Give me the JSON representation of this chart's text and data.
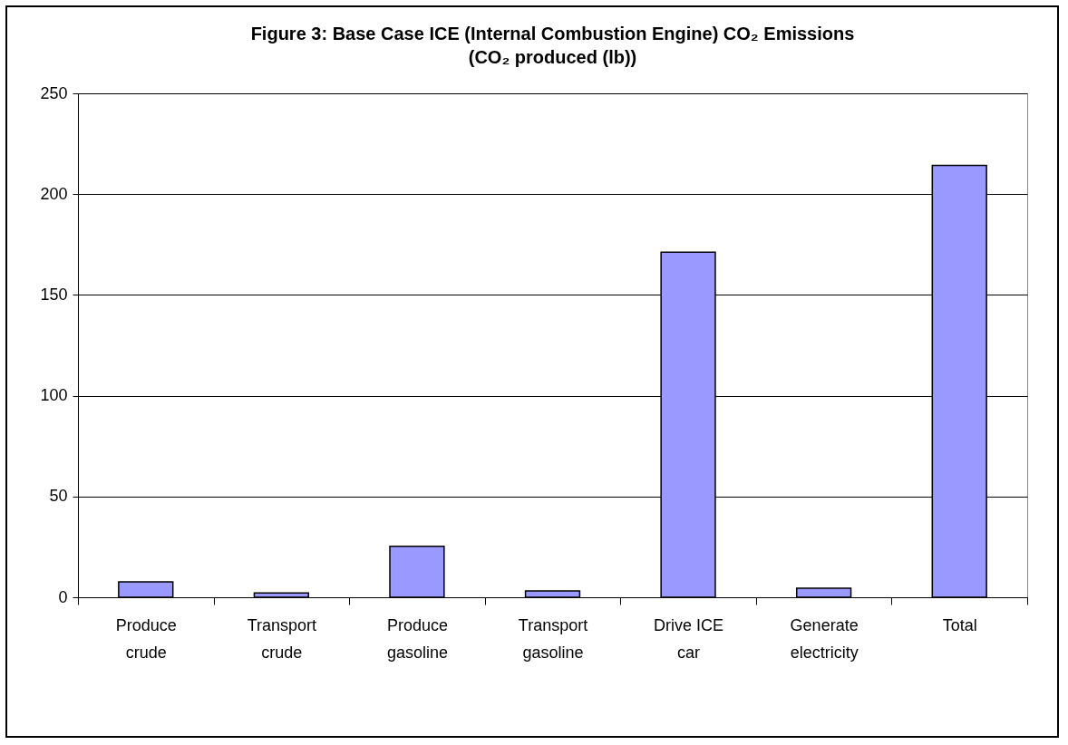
{
  "chart_data": {
    "type": "bar",
    "title": "Figure 3: Base Case ICE (Internal Combustion Engine) CO₂ Emissions",
    "subtitle": "(CO₂ produced (lb))",
    "categories": [
      "Produce crude",
      "Transport crude",
      "Produce gasoline",
      "Transport gasoline",
      "Drive ICE car",
      "Generate electricity",
      "Total"
    ],
    "values": [
      7.6,
      2.1,
      25.3,
      3.1,
      171.2,
      4.5,
      214.2
    ],
    "color": "#9999ff",
    "ylim": [
      0,
      250
    ],
    "yticks": [
      0,
      50,
      100,
      150,
      200,
      250
    ],
    "grid": "y"
  }
}
